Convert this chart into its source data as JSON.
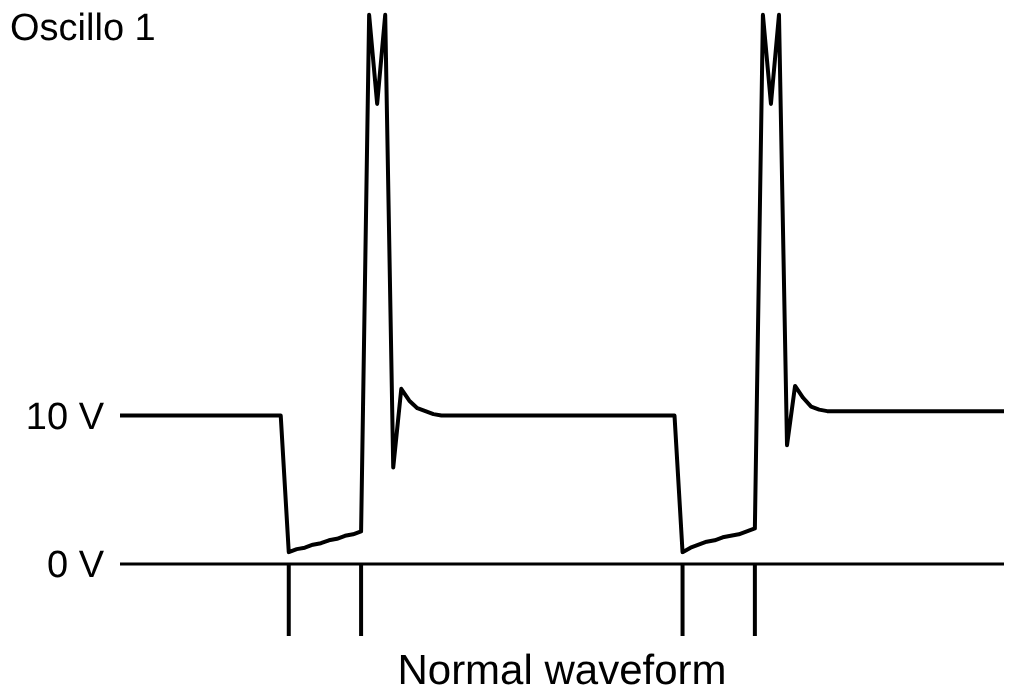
{
  "chart_data": {
    "type": "line",
    "title": "Oscillo 1",
    "xlabel": "Normal waveform",
    "categories": [
      null,
      null,
      null,
      null,
      null,
      null,
      null,
      null,
      null,
      null,
      null,
      null,
      null,
      null,
      null,
      null,
      null,
      null,
      null,
      null,
      null,
      null,
      null,
      null,
      null,
      null,
      null,
      null,
      null,
      null,
      null,
      null,
      null,
      null,
      null,
      null,
      null,
      null,
      null,
      null,
      null,
      null,
      null,
      null,
      null,
      null,
      null,
      null,
      null,
      null,
      null,
      null,
      null,
      null,
      null,
      null,
      null,
      null,
      null,
      null,
      null,
      null,
      null,
      null,
      null,
      null,
      null,
      null,
      null,
      null,
      null,
      null,
      null,
      null,
      null,
      null,
      null,
      null,
      null,
      null,
      null,
      null,
      null,
      null,
      null,
      null,
      null,
      null,
      null,
      null,
      null,
      null,
      null,
      null,
      null,
      null,
      null,
      null,
      null,
      null,
      null,
      null,
      null,
      null,
      null,
      null,
      null,
      null,
      null,
      null,
      null
    ],
    "series": [
      {
        "color": "#000000",
        "values": [
          10,
          10,
          10,
          10,
          10,
          10,
          10,
          10,
          10,
          10,
          10,
          10,
          10,
          10,
          10,
          10,
          10,
          10,
          10,
          10,
          10,
          0.8,
          1,
          1.1,
          1.3,
          1.4,
          1.6,
          1.7,
          1.9,
          2,
          2.2,
          37,
          31,
          37,
          6.5,
          11.8,
          11,
          10.5,
          10.3,
          10.1,
          10,
          10,
          10,
          10,
          10,
          10,
          10,
          10,
          10,
          10,
          10,
          10,
          10,
          10,
          10,
          10,
          10,
          10,
          10,
          10,
          10,
          10,
          10,
          10,
          10,
          10,
          10,
          10,
          10,
          10,
          0.8,
          1.1,
          1.3,
          1.5,
          1.6,
          1.8,
          1.9,
          2,
          2.2,
          2.4,
          37,
          31,
          37,
          8,
          12,
          11.2,
          10.6,
          10.4,
          10.3,
          10.3,
          10.3,
          10.3,
          10.3,
          10.3,
          10.3,
          10.3,
          10.3,
          10.3,
          10.3,
          10.3,
          10.3,
          10.3,
          10.3,
          10.3,
          10.3,
          10.3,
          10.3,
          10.3,
          10.3,
          10.3,
          10.3
        ]
      }
    ],
    "ylim": [
      0,
      38
    ],
    "yticks": [
      {
        "value": 0,
        "label": "0 V"
      },
      {
        "value": 10,
        "label": "10 V"
      }
    ],
    "tick_labels": "y",
    "marker": "none",
    "line_style": "solid"
  }
}
